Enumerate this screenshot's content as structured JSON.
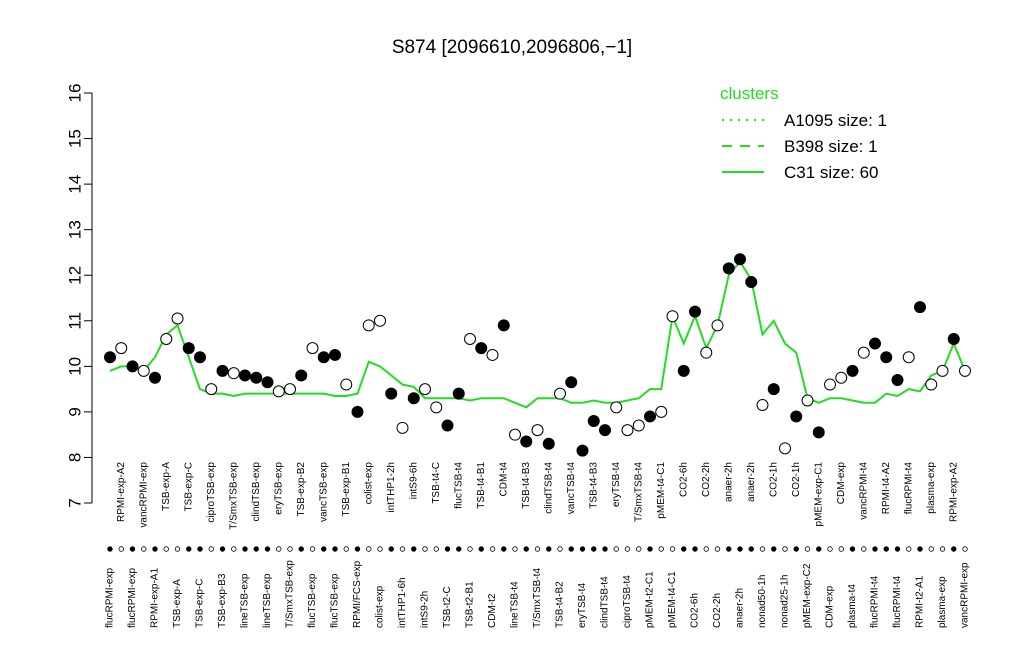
{
  "chart_data": {
    "type": "scatter",
    "title": "S874 [2096610,2096806,−1]",
    "categories": [
      "flucRPMI-exp",
      "RPMI-exp-A2",
      "flucRPMI-exp",
      "vancRPMI-exp",
      "RPMI-exp-A1",
      "TSB-exp-A",
      "TSB-exp-A",
      "TSB-exp-C",
      "TSB-exp-C",
      "ciproTSB-exp",
      "TSB-exp-B3",
      "T/SmxTSB-exp",
      "lineTSB-exp",
      "clindTSB-exp",
      "lineTSB-exp",
      "eryTSB-exp",
      "T/SmxTSB-exp",
      "TSB-exp-B2",
      "flucTSB-exp",
      "vancTSB-exp",
      "flucTSB-exp",
      "TSB-exp-B1",
      "RPMI/FCS-exp",
      "colist-exp",
      "colist-exp",
      "intTHP1-2h",
      "intTHP1-6h",
      "intS9-6h",
      "intS9-2h",
      "TSB-t4-C",
      "TSB-t2-C",
      "flucTSB-t4",
      "TSB-t2-B1",
      "TSB-t4-B1",
      "CDM-t2",
      "CDM-t4",
      "lineTSB-t4",
      "TSB-t4-B3",
      "T/SmxTSB-t4",
      "clindTSB-t4",
      "TSB-t4-B2",
      "vancTSB-t4",
      "eryTSB-t4",
      "TSB-t4-B3",
      "clindTSB-t4",
      "eryTSB-t4",
      "ciproTSB-t4",
      "T/SmxTSB-t4",
      "pMEM-t2-C1",
      "pMEM-t4-C1",
      "pMEM-t4-C1",
      "CO2-6h",
      "CO2-6h",
      "CO2-2h",
      "CO2-2h",
      "anaer-2h",
      "anaer-2h",
      "anaer-2h",
      "nonad50-1h",
      "CO2-1h",
      "nonad25-1h",
      "CO2-1h",
      "pMEM-exp-C2",
      "pMEM-exp-C1",
      "CDM-exp",
      "CDM-exp",
      "plasma-t4",
      "vancRPMI-t4",
      "flucRPMI-t4",
      "RPMI-t4-A2",
      "flucRPMI-t4",
      "flucRPMI-t4",
      "RPMI-t2-A1",
      "plasma-exp",
      "plasma-exp",
      "RPMI-exp-A2",
      "vancRPMI-exp"
    ],
    "values": [
      10.2,
      10.4,
      10.0,
      9.9,
      9.75,
      10.6,
      11.05,
      10.4,
      10.2,
      9.5,
      9.9,
      9.85,
      9.8,
      9.75,
      9.65,
      9.45,
      9.5,
      9.8,
      10.4,
      10.2,
      10.25,
      9.6,
      9.0,
      10.9,
      11.0,
      9.4,
      8.65,
      9.3,
      9.5,
      9.1,
      8.7,
      9.4,
      10.6,
      10.4,
      10.25,
      10.9,
      8.5,
      8.35,
      8.6,
      8.3,
      9.4,
      9.65,
      8.15,
      8.8,
      8.6,
      9.1,
      8.6,
      8.7,
      8.9,
      9.0,
      11.1,
      9.9,
      11.2,
      10.3,
      10.9,
      12.15,
      12.35,
      11.85,
      9.15,
      9.5,
      8.2,
      8.9,
      9.25,
      8.55,
      9.6,
      9.75,
      9.9,
      10.3,
      10.5,
      10.2,
      9.7,
      10.2,
      11.3,
      9.6,
      9.9,
      10.6,
      9.9
    ],
    "filled": [
      true,
      false,
      true,
      false,
      true,
      false,
      false,
      true,
      true,
      false,
      true,
      false,
      true,
      true,
      true,
      false,
      false,
      true,
      false,
      true,
      true,
      false,
      true,
      false,
      false,
      true,
      false,
      true,
      false,
      false,
      true,
      true,
      false,
      true,
      false,
      true,
      false,
      true,
      false,
      true,
      false,
      true,
      true,
      true,
      true,
      false,
      false,
      false,
      true,
      false,
      false,
      true,
      true,
      false,
      false,
      true,
      true,
      true,
      false,
      true,
      false,
      true,
      false,
      true,
      false,
      false,
      true,
      false,
      true,
      true,
      true,
      false,
      true,
      false,
      false,
      true,
      false
    ],
    "point_color": "#000000",
    "ylim": [
      7,
      16
    ],
    "yticks": [
      7,
      8,
      9,
      10,
      11,
      12,
      13,
      14,
      15,
      16
    ],
    "legend_title": "clusters",
    "legend_position": "top-right",
    "series": [
      {
        "name": "A1095 size: 1",
        "color": "#22dd22",
        "dash": "dotted"
      },
      {
        "name": "B398 size: 1",
        "color": "#22dd22",
        "dash": "dashed"
      },
      {
        "name": "C31 size: 60",
        "color": "#22dd22",
        "dash": "solid",
        "values": [
          9.9,
          10.0,
          10.0,
          9.9,
          10.2,
          10.7,
          10.9,
          10.2,
          9.5,
          9.4,
          9.4,
          9.35,
          9.4,
          9.4,
          9.4,
          9.4,
          9.4,
          9.4,
          9.4,
          9.4,
          9.35,
          9.35,
          9.4,
          10.1,
          10.0,
          9.8,
          9.6,
          9.55,
          9.3,
          9.3,
          9.3,
          9.3,
          9.25,
          9.3,
          9.3,
          9.3,
          9.2,
          9.1,
          9.3,
          9.3,
          9.3,
          9.2,
          9.2,
          9.25,
          9.2,
          9.2,
          9.25,
          9.3,
          9.5,
          9.5,
          11.1,
          10.5,
          11.1,
          10.4,
          10.9,
          12.0,
          12.3,
          11.9,
          10.7,
          11.0,
          10.5,
          10.3,
          9.3,
          9.2,
          9.3,
          9.3,
          9.25,
          9.2,
          9.2,
          9.4,
          9.35,
          9.5,
          9.45,
          9.8,
          9.9,
          10.5,
          9.9
        ]
      }
    ]
  }
}
